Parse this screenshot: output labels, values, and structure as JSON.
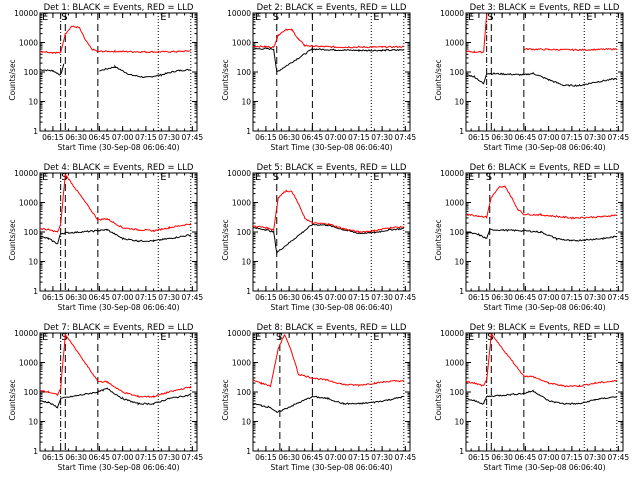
{
  "panels_common": {
    "ylabel": "Counts/sec",
    "ytick_labels": [
      "1",
      "10",
      "100",
      "1000",
      "10000"
    ],
    "xtick_labels": [
      "06:15",
      "06:30",
      "06:45",
      "07:00",
      "07:15",
      "07:30",
      "07:45"
    ],
    "marker_labels": [
      "E",
      "S",
      "E"
    ],
    "colors": {
      "events": "#000000",
      "lld": "#ff0000"
    },
    "yscale": "log"
  },
  "chart_data": [
    {
      "type": "line",
      "title": "Det 1: BLACK = Events, RED = LLD",
      "xlabel": "Start Time (30-Sep-08 06:06:40)",
      "ylim": [
        1,
        10000
      ],
      "x_range": [
        "06:06:40",
        "07:48:00"
      ],
      "vlines": {
        "dashdot": "06:20",
        "dash1": "06:23",
        "dash2": "06:44",
        "dotted": [
          "07:23",
          "07:44"
        ]
      },
      "series": [
        {
          "name": "Events",
          "x": [
            "06:06:40",
            "06:15",
            "06:18",
            "06:20",
            "06:22",
            "06:23",
            "06:44",
            "06:45",
            "06:55",
            "07:05",
            "07:15",
            "07:25",
            "07:35",
            "07:44"
          ],
          "values": [
            120,
            110,
            90,
            80,
            180,
            null,
            null,
            110,
            150,
            80,
            65,
            80,
            110,
            120
          ]
        },
        {
          "name": "LLD",
          "x": [
            "06:06:40",
            "06:15",
            "06:20",
            "06:23",
            "06:27",
            "06:32",
            "06:36",
            "06:40",
            "06:44",
            "06:55",
            "07:15",
            "07:35",
            "07:44"
          ],
          "values": [
            500,
            460,
            450,
            2000,
            3500,
            3200,
            1200,
            600,
            500,
            500,
            480,
            490,
            520
          ]
        }
      ]
    },
    {
      "type": "line",
      "title": "Det 2: BLACK = Events, RED = LLD",
      "xlabel": "Start Time (30-Sep-08 06:06:40)",
      "ylim": [
        1,
        10000
      ],
      "x_range": [
        "06:06:40",
        "07:48:00"
      ],
      "vlines": {
        "dashdot": null,
        "dash1": "06:22",
        "dash2": "06:45",
        "dotted": [
          "07:23",
          "07:44"
        ]
      },
      "series": [
        {
          "name": "Events",
          "x": [
            "06:06:40",
            "06:15",
            "06:20",
            "06:22",
            "06:45",
            "07:00",
            "07:15",
            "07:30",
            "07:44"
          ],
          "values": [
            600,
            620,
            600,
            100,
            600,
            560,
            540,
            540,
            560
          ]
        },
        {
          "name": "LLD",
          "x": [
            "06:06:40",
            "06:15",
            "06:20",
            "06:23",
            "06:28",
            "06:32",
            "06:36",
            "06:40",
            "06:45",
            "07:00",
            "07:15",
            "07:30",
            "07:44"
          ],
          "values": [
            750,
            720,
            700,
            1800,
            2800,
            2600,
            1300,
            800,
            750,
            700,
            700,
            700,
            720
          ]
        }
      ]
    },
    {
      "type": "line",
      "title": "Det 3: BLACK = Events, RED = LLD",
      "xlabel": "Start Time (30-Sep-08 06:06:40)",
      "ylim": [
        1,
        10000
      ],
      "x_range": [
        "06:06:40",
        "07:48:00"
      ],
      "vlines": {
        "dashdot": "06:20",
        "dash1": "06:23",
        "dash2": "06:44",
        "dotted": [
          "07:23",
          "07:44"
        ]
      },
      "series": [
        {
          "name": "Events",
          "x": [
            "06:06:40",
            "06:12",
            "06:18",
            "06:20",
            "06:44",
            "06:50",
            "07:00",
            "07:10",
            "07:20",
            "07:30",
            "07:44"
          ],
          "values": [
            80,
            70,
            40,
            90,
            80,
            90,
            55,
            35,
            35,
            45,
            60
          ]
        },
        {
          "name": "LLD",
          "x": [
            "06:06:40",
            "06:12",
            "06:18",
            "06:20",
            "06:23",
            "06:44",
            "07:00",
            "07:20",
            "07:44"
          ],
          "values": [
            500,
            480,
            470,
            9000,
            null,
            600,
            580,
            560,
            600
          ]
        }
      ]
    },
    {
      "type": "line",
      "title": "Det 4: BLACK = Events, RED = LLD",
      "xlabel": "Start Time (30-Sep-08 06:06:40)",
      "ylim": [
        1,
        10000
      ],
      "x_range": [
        "06:06:40",
        "07:48:00"
      ],
      "vlines": {
        "dashdot": "06:20",
        "dash1": "06:23",
        "dash2": "06:44",
        "dotted": [
          "07:23",
          "07:44"
        ]
      },
      "series": [
        {
          "name": "Events",
          "x": [
            "06:06:40",
            "06:12",
            "06:18",
            "06:20",
            "06:44",
            "06:50",
            "07:00",
            "07:10",
            "07:20",
            "07:30",
            "07:44"
          ],
          "values": [
            70,
            60,
            40,
            90,
            110,
            120,
            60,
            50,
            50,
            60,
            80
          ]
        },
        {
          "name": "LLD",
          "x": [
            "06:06:40",
            "06:12",
            "06:18",
            "06:20",
            "06:23",
            "06:44",
            "06:50",
            "07:00",
            "07:10",
            "07:20",
            "07:30",
            "07:44"
          ],
          "values": [
            130,
            120,
            100,
            180,
            9000,
            260,
            280,
            140,
            120,
            110,
            140,
            190
          ]
        }
      ]
    },
    {
      "type": "line",
      "title": "Det 5: BLACK = Events, RED = LLD",
      "xlabel": "Start Time (30-Sep-08 06:06:40)",
      "ylim": [
        1,
        10000
      ],
      "x_range": [
        "06:06:40",
        "07:48:00"
      ],
      "vlines": {
        "dashdot": null,
        "dash1": "06:22",
        "dash2": "06:45",
        "dotted": [
          "07:23",
          "07:44"
        ]
      },
      "series": [
        {
          "name": "Events",
          "x": [
            "06:06:40",
            "06:15",
            "06:20",
            "06:22",
            "06:45",
            "06:55",
            "07:05",
            "07:15",
            "07:25",
            "07:35",
            "07:44"
          ],
          "values": [
            140,
            120,
            100,
            20,
            180,
            170,
            120,
            90,
            95,
            120,
            130
          ]
        },
        {
          "name": "LLD",
          "x": [
            "06:06:40",
            "06:15",
            "06:20",
            "06:23",
            "06:28",
            "06:32",
            "06:36",
            "06:40",
            "06:45",
            "06:55",
            "07:05",
            "07:15",
            "07:25",
            "07:35",
            "07:44"
          ],
          "values": [
            160,
            140,
            120,
            1500,
            2500,
            2300,
            900,
            300,
            200,
            190,
            130,
            100,
            110,
            140,
            150
          ]
        }
      ]
    },
    {
      "type": "line",
      "title": "Det 6: BLACK = Events, RED = LLD",
      "xlabel": "Start Time (30-Sep-08 06:06:40)",
      "ylim": [
        1,
        10000
      ],
      "x_range": [
        "06:06:40",
        "07:48:00"
      ],
      "vlines": {
        "dashdot": null,
        "dash1": "06:22",
        "dash2": "06:44",
        "dotted": [
          "07:23",
          "07:44"
        ]
      },
      "series": [
        {
          "name": "Events",
          "x": [
            "06:06:40",
            "06:15",
            "06:20",
            "06:22",
            "06:44",
            "06:55",
            "07:05",
            "07:15",
            "07:25",
            "07:35",
            "07:44"
          ],
          "values": [
            100,
            80,
            60,
            120,
            110,
            100,
            60,
            50,
            55,
            60,
            70
          ]
        },
        {
          "name": "LLD",
          "x": [
            "06:06:40",
            "06:15",
            "06:20",
            "06:23",
            "06:28",
            "06:32",
            "06:36",
            "06:40",
            "06:44",
            "06:55",
            "07:15",
            "07:35",
            "07:44"
          ],
          "values": [
            400,
            350,
            320,
            1500,
            3200,
            3500,
            1500,
            600,
            400,
            380,
            300,
            330,
            380
          ]
        }
      ]
    },
    {
      "type": "line",
      "title": "Det 7: BLACK = Events, RED = LLD",
      "xlabel": "Start Time (30-Sep-08 06:06:40)",
      "ylim": [
        1,
        10000
      ],
      "x_range": [
        "06:06:40",
        "07:48:00"
      ],
      "vlines": {
        "dashdot": "06:20",
        "dash1": "06:23",
        "dash2": "06:44",
        "dotted": [
          "07:23",
          "07:44"
        ]
      },
      "series": [
        {
          "name": "Events",
          "x": [
            "06:06:40",
            "06:12",
            "06:18",
            "06:20",
            "06:44",
            "06:50",
            "07:00",
            "07:10",
            "07:20",
            "07:30",
            "07:44"
          ],
          "values": [
            50,
            45,
            30,
            60,
            100,
            130,
            60,
            40,
            40,
            60,
            80
          ]
        },
        {
          "name": "LLD",
          "x": [
            "06:06:40",
            "06:12",
            "06:18",
            "06:20",
            "06:23",
            "06:44",
            "06:50",
            "07:00",
            "07:10",
            "07:20",
            "07:30",
            "07:44"
          ],
          "values": [
            110,
            100,
            80,
            130,
            9000,
            230,
            220,
            100,
            70,
            70,
            100,
            150
          ]
        }
      ]
    },
    {
      "type": "line",
      "title": "Det 8: BLACK = Events, RED = LLD",
      "xlabel": "Start Time (30-Sep-08 06:06:40)",
      "ylim": [
        1,
        10000
      ],
      "x_range": [
        "06:06:40",
        "07:48:00"
      ],
      "vlines": {
        "dashdot": null,
        "dash1": "06:24",
        "dash2": "06:45",
        "dotted": [
          "07:23",
          "07:44"
        ]
      },
      "series": [
        {
          "name": "Events",
          "x": [
            "06:06:40",
            "06:12",
            "06:18",
            "06:22",
            "06:45",
            "06:55",
            "07:05",
            "07:15",
            "07:25",
            "07:35",
            "07:44"
          ],
          "values": [
            40,
            35,
            30,
            20,
            70,
            60,
            40,
            40,
            45,
            55,
            70
          ]
        },
        {
          "name": "LLD",
          "x": [
            "06:06:40",
            "06:12",
            "06:18",
            "06:23",
            "06:27",
            "06:32",
            "06:36",
            "06:45",
            "06:55",
            "07:05",
            "07:15",
            "07:25",
            "07:35",
            "07:44"
          ],
          "values": [
            250,
            200,
            160,
            3000,
            9000,
            2000,
            400,
            300,
            250,
            180,
            170,
            200,
            230,
            240
          ]
        }
      ]
    },
    {
      "type": "line",
      "title": "Det 9: BLACK = Events, RED = LLD",
      "xlabel": "Start Time (30-Sep-08 06:06:40)",
      "ylim": [
        1,
        10000
      ],
      "x_range": [
        "06:06:40",
        "07:48:00"
      ],
      "vlines": {
        "dashdot": "06:20",
        "dash1": "06:23",
        "dash2": "06:44",
        "dotted": [
          "07:23",
          "07:44"
        ]
      },
      "series": [
        {
          "name": "Events",
          "x": [
            "06:06:40",
            "06:12",
            "06:18",
            "06:20",
            "06:44",
            "06:50",
            "07:00",
            "07:10",
            "07:20",
            "07:30",
            "07:44"
          ],
          "values": [
            60,
            50,
            40,
            70,
            90,
            110,
            50,
            40,
            40,
            55,
            70
          ]
        },
        {
          "name": "LLD",
          "x": [
            "06:06:40",
            "06:12",
            "06:18",
            "06:20",
            "06:23",
            "06:44",
            "06:50",
            "07:00",
            "07:10",
            "07:20",
            "07:30",
            "07:44"
          ],
          "values": [
            220,
            200,
            160,
            250,
            9000,
            350,
            330,
            200,
            160,
            160,
            200,
            240
          ]
        }
      ]
    }
  ]
}
